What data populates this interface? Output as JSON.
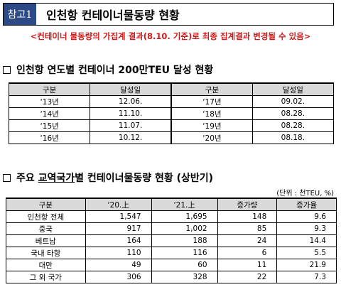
{
  "header": {
    "tag": "참고1",
    "title": "인천항  컨테이너물동량  현황"
  },
  "note": "<컨테이너 물동량의 가집계 결과(8.10. 기준)로 최종 집계결과 변경될 수 있음>",
  "section1": {
    "title": "인천항 연도별 컨테이너 200만TEU 달성 현황",
    "headers": [
      "구분",
      "달성일",
      "구분",
      "달성일"
    ],
    "rows": [
      [
        "‘13년",
        "12.06.",
        "‘17년",
        "09.02."
      ],
      [
        "‘14년",
        "11.10.",
        "‘18년",
        "08.28."
      ],
      [
        "‘15년",
        "11.07.",
        "‘19년",
        "08.28."
      ],
      [
        "‘16년",
        "10.12.",
        "‘20년",
        "08.18."
      ]
    ]
  },
  "section2": {
    "title_pre": "주요 ",
    "title_u": "교역국가",
    "title_post": "별 컨테이너물동량 현황 (상반기)",
    "unit": "(단위 : 천TEU, %)",
    "headers": [
      "구분",
      "‘20.上",
      "‘21.上",
      "증가량",
      "증가율"
    ],
    "rows": [
      [
        "인천항 전체",
        "1,547",
        "1,695",
        "148",
        "9.6"
      ],
      [
        "중국",
        "917",
        "1,002",
        "85",
        "9.3"
      ],
      [
        "베트남",
        "164",
        "188",
        "24",
        "14.4"
      ],
      [
        "국내 타항",
        "110",
        "116",
        "6",
        "5.5"
      ],
      [
        "대만",
        "49",
        "60",
        "11",
        "21.9"
      ],
      [
        "그 외 국가",
        "306",
        "328",
        "22",
        "7.3"
      ]
    ]
  }
}
